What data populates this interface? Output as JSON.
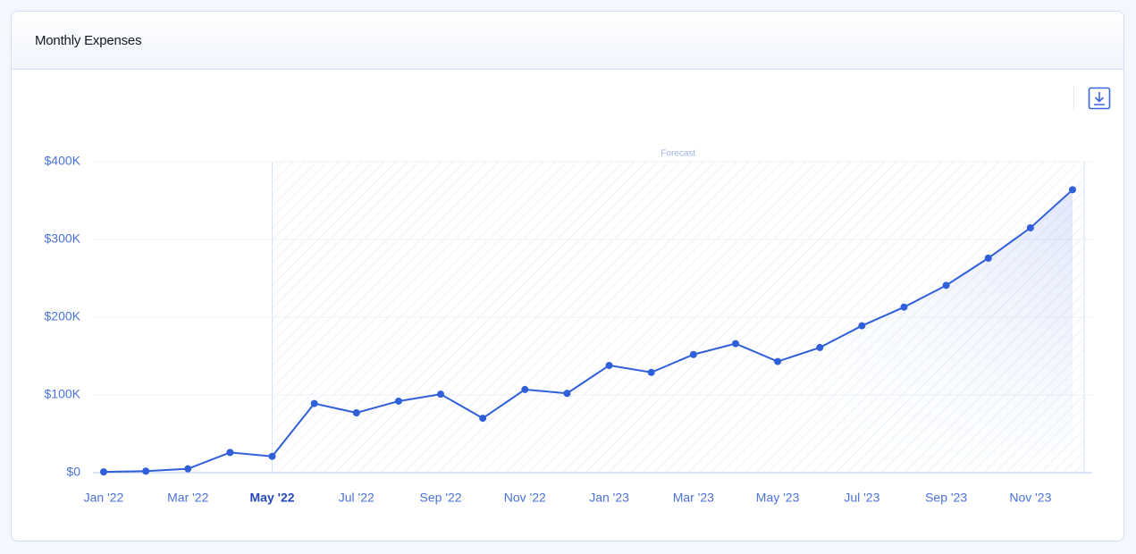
{
  "header": {
    "title": "Monthly Expenses"
  },
  "chart_data": {
    "type": "line",
    "categories": [
      "Jan '22",
      null,
      "Mar '22",
      null,
      "May '22",
      null,
      "Jul '22",
      null,
      "Sep '22",
      null,
      "Nov '22",
      null,
      "Jan '23",
      null,
      "Mar '23",
      null,
      "May '23",
      null,
      "Jul '23",
      null,
      "Sep '23",
      null,
      "Nov '23",
      null
    ],
    "series": [
      {
        "name": "Monthly Expenses",
        "color": "#2f5fd9",
        "values": [
          1000,
          2000,
          5000,
          26000,
          21000,
          89000,
          77000,
          92000,
          101000,
          70000,
          107000,
          102000,
          138000,
          129000,
          152000,
          166000,
          143000,
          161000,
          189000,
          213000,
          241000,
          276000,
          315000,
          364000
        ]
      }
    ],
    "ylim": [
      0,
      400000
    ],
    "yticks": [
      {
        "value": 0,
        "label": "$0"
      },
      {
        "value": 100000,
        "label": "$100K"
      },
      {
        "value": 200000,
        "label": "$200K"
      },
      {
        "value": 300000,
        "label": "$300K"
      },
      {
        "value": 400000,
        "label": "$400K"
      }
    ],
    "grid": true,
    "highlight_index": 4,
    "forecast_label": "Forecast"
  }
}
